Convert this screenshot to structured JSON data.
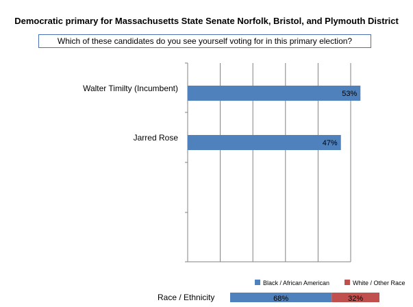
{
  "title": "Democratic primary for Massachusetts State Senate Norfolk, Bristol, and Plymouth District",
  "question": "Which of these candidates do you see yourself voting for in this primary election?",
  "chart_data": [
    {
      "type": "bar",
      "orientation": "horizontal",
      "categories": [
        "Walter Timilty (Incumbent)",
        "Jarred Rose"
      ],
      "values": [
        53,
        47
      ],
      "value_labels": [
        "53%",
        "47%"
      ],
      "xlim": [
        0,
        50
      ],
      "bar_color": "#4f81bd",
      "grid": true
    },
    {
      "type": "bar",
      "orientation": "horizontal",
      "stacked": true,
      "label": "Race / Ethnicity",
      "series": [
        {
          "name": "Black / African American",
          "value": 68,
          "label": "68%",
          "color": "#4f81bd"
        },
        {
          "name": "White / Other Race",
          "value": 32,
          "label": "32%",
          "color": "#c0504d"
        }
      ]
    }
  ]
}
